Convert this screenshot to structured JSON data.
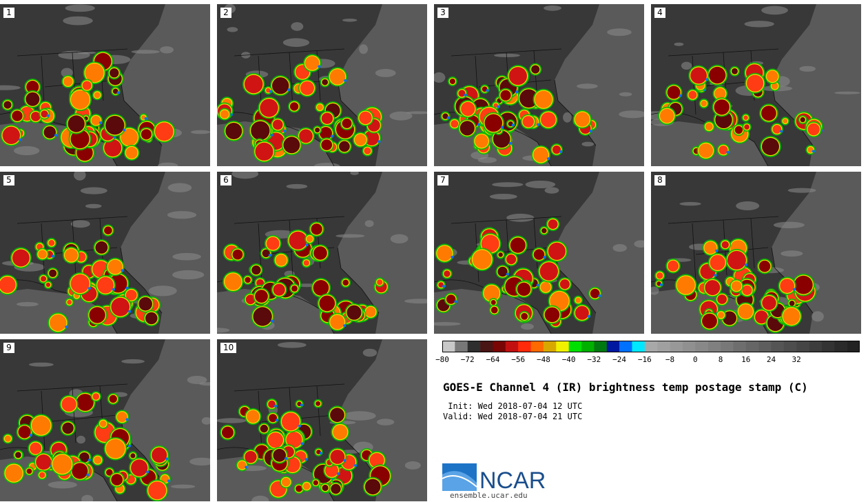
{
  "panels": [
    {
      "label": "1"
    },
    {
      "label": "2"
    },
    {
      "label": "3"
    },
    {
      "label": "4"
    },
    {
      "label": "5"
    },
    {
      "label": "6"
    },
    {
      "label": "7"
    },
    {
      "label": "8"
    },
    {
      "label": "9"
    },
    {
      "label": "10"
    }
  ],
  "colorbar": {
    "colors": [
      "#c8c8c8",
      "#787878",
      "#2e2e2e",
      "#4a1515",
      "#7a0505",
      "#c21010",
      "#ff2a0a",
      "#ff6a00",
      "#d8a800",
      "#f0f000",
      "#00e000",
      "#00b000",
      "#007a10",
      "#0018a0",
      "#0070ff",
      "#00e8ff",
      "#a8a8a8",
      "#a0a0a0",
      "#989898",
      "#909090",
      "#888888",
      "#808080",
      "#787878",
      "#6e6e6e",
      "#666666",
      "#5e5e5e",
      "#555555",
      "#4d4d4d",
      "#454545",
      "#3c3c3c",
      "#333333",
      "#2a2a2a",
      "#222222"
    ],
    "tick_labels": [
      "−80",
      "−72",
      "−64",
      "−56",
      "−48",
      "−40",
      "−32",
      "−24",
      "−16",
      "−8",
      "0",
      "8",
      "16",
      "24",
      "32"
    ]
  },
  "title": "GOES-E Channel 4 (IR) brightness temp postage stamp (C)",
  "init_line": " Init: Wed 2018-07-04 12 UTC",
  "valid_line": "Valid: Wed 2018-07-04 21 UTC",
  "logo_text": "NCAR",
  "url": "ensemble.ucar.edu"
}
